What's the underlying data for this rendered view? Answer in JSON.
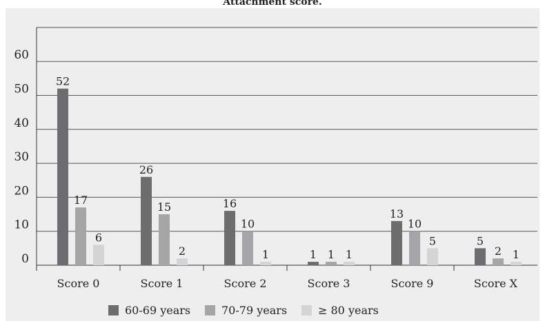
{
  "chart_data": {
    "type": "bar",
    "title": "Attachment score.",
    "categories": [
      "Score 0",
      "Score 1",
      "Score 2",
      "Score 3",
      "Score 9",
      "Score X"
    ],
    "series": [
      {
        "name": "60-69 years",
        "color": "#6d6d6f",
        "values": [
          52,
          26,
          16,
          1,
          13,
          5
        ]
      },
      {
        "name": "70-79 years",
        "color": "#a5a5a7",
        "values": [
          17,
          15,
          10,
          1,
          10,
          2
        ]
      },
      {
        "name": "≥ 80 years",
        "color": "#d4d4d6",
        "values": [
          6,
          2,
          1,
          1,
          5,
          1
        ]
      }
    ],
    "y_ticks": [
      0,
      10,
      20,
      30,
      40,
      50,
      60
    ],
    "ylim": [
      0,
      70
    ],
    "grid": true,
    "legend_position": "bottom",
    "background": "#eeeeee"
  }
}
